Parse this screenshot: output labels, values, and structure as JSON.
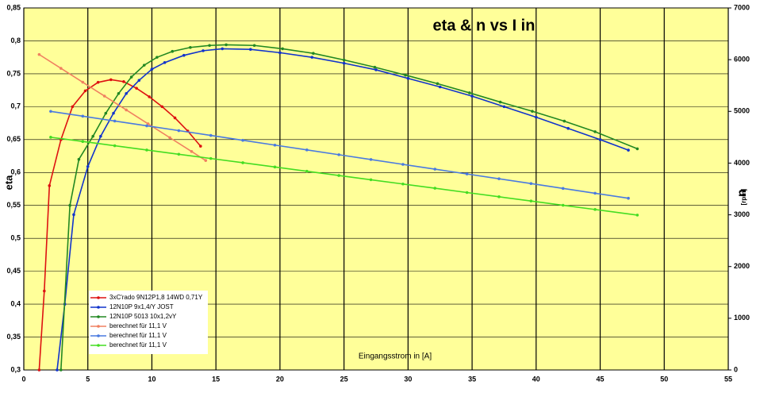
{
  "chart_data": {
    "type": "line",
    "title": "eta & n  vs I in",
    "xlabel": "Eingangsstrom in [A]",
    "ylabel": "eta",
    "y2label": "n",
    "y2label_unit": "[rpm]",
    "xlim": [
      0,
      55
    ],
    "xticks": [
      0,
      5,
      10,
      15,
      20,
      25,
      30,
      35,
      40,
      45,
      50,
      55
    ],
    "ylim": [
      0.3,
      0.85
    ],
    "yticks": [
      {
        "value": 0.3,
        "label": "0,3"
      },
      {
        "value": 0.35,
        "label": "0,35"
      },
      {
        "value": 0.4,
        "label": "0,4"
      },
      {
        "value": 0.45,
        "label": "0,45"
      },
      {
        "value": 0.5,
        "label": "0,5"
      },
      {
        "value": 0.55,
        "label": "0,55"
      },
      {
        "value": 0.6,
        "label": "0,6"
      },
      {
        "value": 0.65,
        "label": "0,65"
      },
      {
        "value": 0.7,
        "label": "0,7"
      },
      {
        "value": 0.75,
        "label": "0,75"
      },
      {
        "value": 0.8,
        "label": "0,8"
      },
      {
        "value": 0.85,
        "label": "0,85"
      }
    ],
    "y2lim": [
      0,
      7000
    ],
    "y2ticks": [
      0,
      1000,
      2000,
      3000,
      4000,
      5000,
      6000,
      7000
    ],
    "grid": true,
    "legend": "lower left",
    "series": [
      {
        "name": "3xC'rado 9N12P1,8  14WD 0,71Y",
        "color": "#dd1111",
        "x": [
          1.2,
          1.6,
          2.0,
          2.9,
          3.8,
          4.8,
          5.8,
          6.8,
          7.8,
          8.8,
          9.8,
          10.8,
          11.8,
          12.8,
          13.8
        ],
        "values": [
          0.3,
          0.42,
          0.58,
          0.65,
          0.7,
          0.724,
          0.737,
          0.741,
          0.738,
          0.728,
          0.715,
          0.7,
          0.683,
          0.663,
          0.64
        ]
      },
      {
        "name": "12N10P 9x1,4/Y JOST",
        "color": "#1133cc",
        "x": [
          2.6,
          3.2,
          3.9,
          5.0,
          6.0,
          7.0,
          8.0,
          9.0,
          10.0,
          11.0,
          12.5,
          14.0,
          15.5,
          17.7,
          20,
          22.5,
          25,
          27.5,
          30,
          32.5,
          35,
          37.5,
          40,
          42.5,
          45,
          47.2
        ],
        "values": [
          0.3,
          0.4,
          0.536,
          0.609,
          0.655,
          0.69,
          0.72,
          0.74,
          0.757,
          0.767,
          0.778,
          0.785,
          0.788,
          0.787,
          0.782,
          0.775,
          0.766,
          0.756,
          0.743,
          0.73,
          0.716,
          0.7,
          0.684,
          0.667,
          0.65,
          0.634
        ]
      },
      {
        "name": "12N10P 5013 10x1,2vY",
        "color": "#228822",
        "x": [
          2.9,
          3.6,
          4.3,
          5.4,
          6.4,
          7.4,
          8.4,
          9.4,
          10.4,
          11.6,
          13,
          14.5,
          15.8,
          18,
          20.2,
          22.6,
          25,
          27.4,
          29.8,
          32.3,
          34.8,
          37.2,
          39.7,
          42.2,
          44.6,
          47.9
        ],
        "values": [
          0.3,
          0.55,
          0.62,
          0.655,
          0.69,
          0.72,
          0.745,
          0.763,
          0.775,
          0.784,
          0.79,
          0.793,
          0.794,
          0.793,
          0.788,
          0.781,
          0.771,
          0.76,
          0.748,
          0.735,
          0.721,
          0.707,
          0.693,
          0.678,
          0.662,
          0.636
        ]
      },
      {
        "name": "berechnet für  11,1 V",
        "color": "#f08060",
        "axis": "y2",
        "x": [
          1.2,
          2.9,
          4.6,
          6.3,
          8.0,
          9.7,
          11.4,
          13.1,
          14.2
        ],
        "values": [
          6100,
          5832,
          5564,
          5296,
          5028,
          4760,
          4492,
          4224,
          4050
        ]
      },
      {
        "name": "berechnet für  11,1 V",
        "color": "#4a7ae0",
        "axis": "y2",
        "x": [
          2.1,
          4.6,
          7.1,
          9.6,
          12.1,
          14.6,
          17.1,
          19.6,
          22.1,
          24.6,
          27.1,
          29.6,
          32.1,
          34.6,
          37.1,
          39.6,
          42.1,
          44.6,
          47.2
        ],
        "values": [
          5000,
          4907,
          4814,
          4721,
          4628,
          4535,
          4441,
          4348,
          4255,
          4162,
          4069,
          3976,
          3883,
          3790,
          3697,
          3604,
          3510,
          3417,
          3320
        ]
      },
      {
        "name": "berechnet für  11,1 V",
        "color": "#44dd22",
        "axis": "y2",
        "x": [
          2.1,
          4.6,
          7.1,
          9.6,
          12.1,
          14.6,
          17.1,
          19.6,
          22.1,
          24.6,
          27.1,
          29.6,
          32.1,
          34.6,
          37.1,
          39.6,
          42.1,
          44.6,
          47.9
        ],
        "values": [
          4500,
          4418,
          4336,
          4253,
          4171,
          4089,
          4007,
          3925,
          3842,
          3760,
          3678,
          3596,
          3514,
          3431,
          3349,
          3267,
          3185,
          3103,
          2995
        ]
      }
    ]
  }
}
